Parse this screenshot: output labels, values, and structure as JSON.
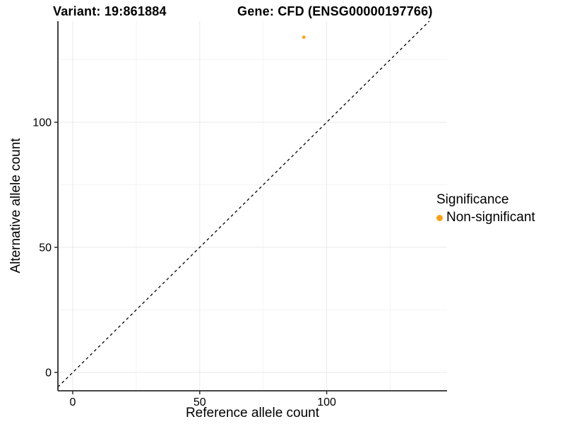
{
  "figure": {
    "titles": {
      "left": "Variant: 19:861884",
      "right": "Gene: CFD (ENSG00000197766)"
    },
    "axes": {
      "x_label": "Reference allele count",
      "y_label": "Alternative allele count"
    },
    "legend": {
      "title": "Significance",
      "items": [
        {
          "label": "Non-significant",
          "color": "#F9A11B"
        }
      ]
    }
  },
  "chart_data": {
    "type": "scatter",
    "title": "Variant: 19:861884 — Gene: CFD (ENSG00000197766)",
    "xlabel": "Reference allele count",
    "ylabel": "Alternative allele count",
    "xlim": [
      -5.84,
      147.4
    ],
    "ylim": [
      -7.34,
      140.4
    ],
    "x_ticks": [
      0,
      50,
      100
    ],
    "y_ticks": [
      0,
      50,
      100
    ],
    "x_minor_ticks": [
      25,
      75,
      125
    ],
    "y_minor_ticks": [
      25,
      75,
      125
    ],
    "grid": true,
    "legend_position": "right",
    "series": [
      {
        "name": "Non-significant",
        "color": "#F9A11B",
        "points": [
          {
            "x": 91,
            "y": 134
          }
        ]
      }
    ],
    "reference_line": {
      "type": "identity",
      "style": "dashed",
      "color": "#000000"
    }
  },
  "style": {
    "axis_color": "#2b2b2b",
    "tick_color": "#2b2b2b",
    "grid_major": "#e9e9e9",
    "grid_minor": "#f4f4f4",
    "text_color": "#000000",
    "background": "#ffffff"
  }
}
